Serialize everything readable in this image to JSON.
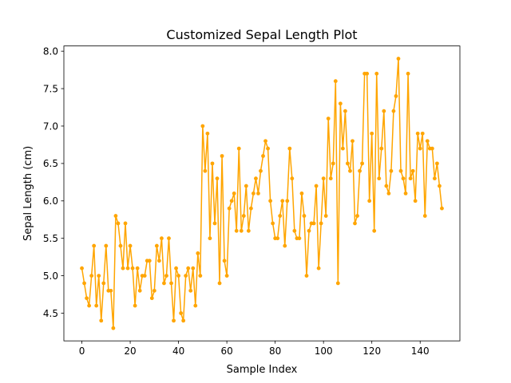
{
  "chart_data": {
    "type": "line",
    "title": "Customized Sepal Length Plot",
    "xlabel": "Sample Index",
    "ylabel": "Sepal Length (cm)",
    "xlim": [
      -7.45,
      156.45
    ],
    "ylim": [
      4.13,
      8.07
    ],
    "xticks": [
      0,
      20,
      40,
      60,
      80,
      100,
      120,
      140
    ],
    "xtick_labels": [
      "0",
      "20",
      "40",
      "60",
      "80",
      "100",
      "120",
      "140"
    ],
    "yticks": [
      4.5,
      5.0,
      5.5,
      6.0,
      6.5,
      7.0,
      7.5,
      8.0
    ],
    "ytick_labels": [
      "4.5",
      "5.0",
      "5.5",
      "6.0",
      "6.5",
      "7.0",
      "7.5",
      "8.0"
    ],
    "grid": false,
    "color": "#ffa500",
    "marker": "circle",
    "series": [
      {
        "values": [
          5.1,
          4.9,
          4.7,
          4.6,
          5.0,
          5.4,
          4.6,
          5.0,
          4.4,
          4.9,
          5.4,
          4.8,
          4.8,
          4.3,
          5.8,
          5.7,
          5.4,
          5.1,
          5.7,
          5.1,
          5.4,
          5.1,
          4.6,
          5.1,
          4.8,
          5.0,
          5.0,
          5.2,
          5.2,
          4.7,
          4.8,
          5.4,
          5.2,
          5.5,
          4.9,
          5.0,
          5.5,
          4.9,
          4.4,
          5.1,
          5.0,
          4.5,
          4.4,
          5.0,
          5.1,
          4.8,
          5.1,
          4.6,
          5.3,
          5.0,
          7.0,
          6.4,
          6.9,
          5.5,
          6.5,
          5.7,
          6.3,
          4.9,
          6.6,
          5.2,
          5.0,
          5.9,
          6.0,
          6.1,
          5.6,
          6.7,
          5.6,
          5.8,
          6.2,
          5.6,
          5.9,
          6.1,
          6.3,
          6.1,
          6.4,
          6.6,
          6.8,
          6.7,
          6.0,
          5.7,
          5.5,
          5.5,
          5.8,
          6.0,
          5.4,
          6.0,
          6.7,
          6.3,
          5.6,
          5.5,
          5.5,
          6.1,
          5.8,
          5.0,
          5.6,
          5.7,
          5.7,
          6.2,
          5.1,
          5.7,
          6.3,
          5.8,
          7.1,
          6.3,
          6.5,
          7.6,
          4.9,
          7.3,
          6.7,
          7.2,
          6.5,
          6.4,
          6.8,
          5.7,
          5.8,
          6.4,
          6.5,
          7.7,
          7.7,
          6.0,
          6.9,
          5.6,
          7.7,
          6.3,
          6.7,
          7.2,
          6.2,
          6.1,
          6.4,
          7.2,
          7.4,
          7.9,
          6.4,
          6.3,
          6.1,
          7.7,
          6.3,
          6.4,
          6.0,
          6.9,
          6.7,
          6.9,
          5.8,
          6.8,
          6.7,
          6.7,
          6.3,
          6.5,
          6.2,
          5.9
        ]
      }
    ]
  }
}
